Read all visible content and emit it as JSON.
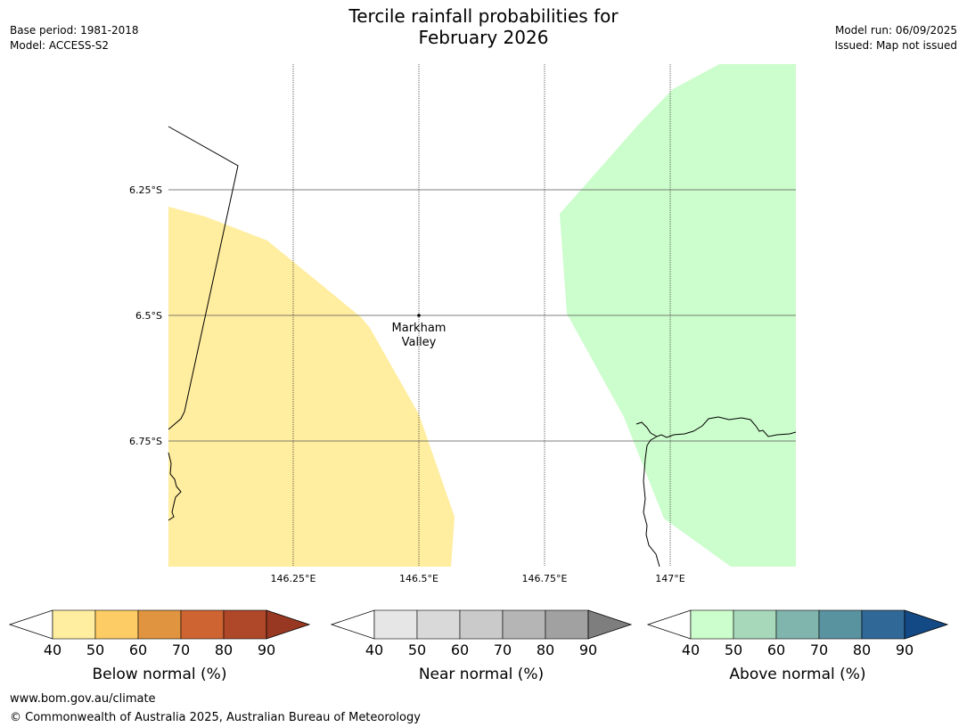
{
  "header": {
    "title_line1": "Tercile rainfall probabilities for",
    "title_line2": "February 2026",
    "base_period": "Base period: 1981-2018",
    "model": "Model: ACCESS-S2",
    "model_run": "Model run: 06/09/2025",
    "issued": "Issued: Map not issued"
  },
  "map": {
    "lat_labels": [
      "6.25°S",
      "6.5°S",
      "6.75°S"
    ],
    "lon_labels": [
      "146.25°E",
      "146.5°E",
      "146.75°E",
      "147°E"
    ],
    "place": {
      "name_line1": "Markham",
      "name_line2": "Valley"
    },
    "colors": {
      "below_40": "#FFEDA0",
      "above_40": "#CCFDCC"
    }
  },
  "colorbars": [
    {
      "label": "Below normal (%)",
      "ticks": [
        "40",
        "50",
        "60",
        "70",
        "80",
        "90"
      ],
      "colors": [
        "#FFEDA0",
        "#FECC65",
        "#E0943F",
        "#CE6432",
        "#AE4829",
        "#983822"
      ]
    },
    {
      "label": "Near normal (%)",
      "ticks": [
        "40",
        "50",
        "60",
        "70",
        "80",
        "90"
      ],
      "colors": [
        "#E6E6E6",
        "#D9D9D9",
        "#CACACA",
        "#B5B5B5",
        "#A1A1A1",
        "#7E7E7E"
      ]
    },
    {
      "label": "Above normal (%)",
      "ticks": [
        "40",
        "50",
        "60",
        "70",
        "80",
        "90"
      ],
      "colors": [
        "#CCFDCC",
        "#A6D8B9",
        "#80B5AE",
        "#5A93A0",
        "#306897",
        "#134A86"
      ]
    }
  ],
  "footer": {
    "url": "www.bom.gov.au/climate",
    "copyright": "© Commonwealth of Australia 2025, Australian Bureau of Meteorology"
  }
}
